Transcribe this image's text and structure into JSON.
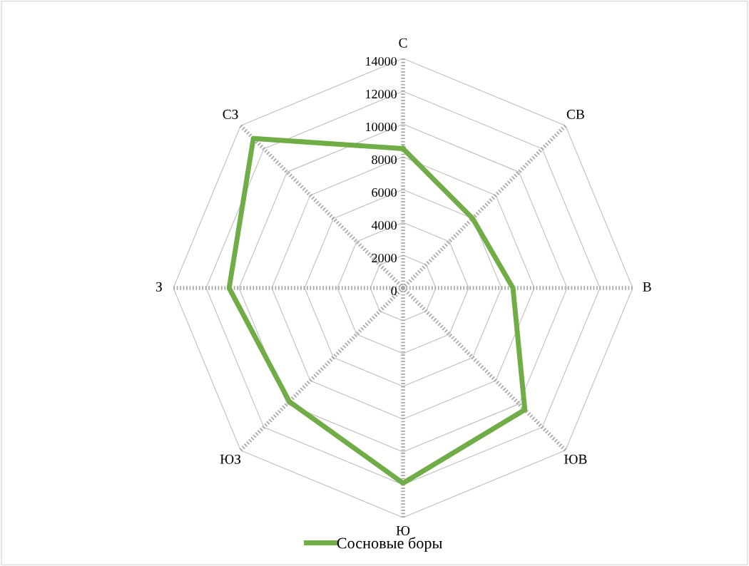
{
  "chart_data": {
    "type": "radar",
    "categories": [
      "С",
      "СВ",
      "В",
      "ЮВ",
      "Ю",
      "ЮЗ",
      "З",
      "СЗ"
    ],
    "series": [
      {
        "name": "Сосновые боры",
        "color": "#70ad47",
        "values": [
          8500,
          6000,
          6700,
          10500,
          11900,
          9800,
          10600,
          12900
        ]
      }
    ],
    "ylim": [
      0,
      14000
    ],
    "yticks": [
      0,
      2000,
      4000,
      6000,
      8000,
      10000,
      12000,
      14000
    ],
    "grid": true,
    "legend": "bottom",
    "marker": "none",
    "line_style": "solid"
  }
}
